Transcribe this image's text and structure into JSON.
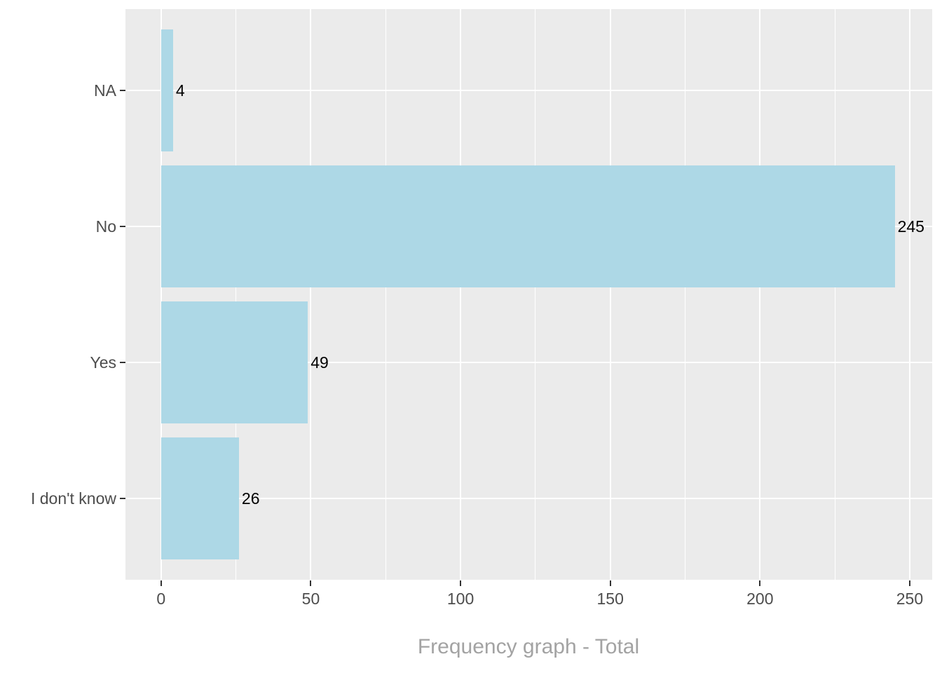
{
  "colors": {
    "background": "#FFFFFF",
    "panel_background": "#EBEBEB",
    "gridline": "#FFFFFF",
    "bar_fill": "#ADD8E6",
    "axis_text": "#4D4D4D",
    "tick_mark": "#333333",
    "value_label": "#000000",
    "axis_title": "#A3A3A3"
  },
  "chart_data": {
    "type": "bar",
    "orientation": "horizontal",
    "title": "",
    "xlabel": "Frequency graph - Total",
    "ylabel": "",
    "categories": [
      "NA",
      "No",
      "Yes",
      "I don't know"
    ],
    "values": [
      4,
      245,
      49,
      26
    ],
    "value_labels": [
      "4",
      "245",
      "49",
      "26"
    ],
    "x_ticks": [
      0,
      50,
      100,
      150,
      200,
      250
    ],
    "x_tick_labels": [
      "0",
      "50",
      "100",
      "150",
      "200",
      "250"
    ],
    "x_minor_ticks": [
      25,
      75,
      125,
      175,
      225
    ],
    "axis_range": [
      -11.9,
      257.5
    ],
    "bar_width_fraction": 0.9,
    "category_expand": 0.6,
    "grid": true,
    "legend": false
  }
}
